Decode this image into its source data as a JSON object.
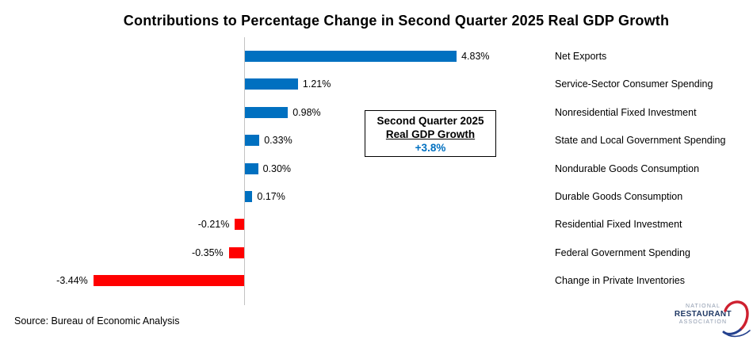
{
  "title": "Contributions to Percentage Change in Second Quarter 2025 Real GDP Growth",
  "chart_data": {
    "type": "bar",
    "orientation": "horizontal",
    "categories": [
      "Net Exports",
      "Service-Sector Consumer Spending",
      "Nonresidential Fixed Investment",
      "State and Local Government Spending",
      "Nondurable Goods Consumption",
      "Durable Goods Consumption",
      "Residential Fixed Investment",
      "Federal Government Spending",
      "Change in Private Inventories"
    ],
    "values": [
      4.83,
      1.21,
      0.98,
      0.33,
      0.3,
      0.17,
      -0.21,
      -0.35,
      -3.44
    ],
    "value_labels": [
      "4.83%",
      "1.21%",
      "0.98%",
      "0.33%",
      "0.30%",
      "0.17%",
      "-0.21%",
      "-0.35%",
      "-3.44%"
    ],
    "title": "Contributions to Percentage Change in Second Quarter 2025 Real GDP Growth",
    "xlabel": "",
    "ylabel": "",
    "xlim": [
      -3.6,
      5.2
    ],
    "grid": false,
    "legend": "none",
    "bar_color_positive": "#0070c0",
    "bar_color_negative": "#ff0000",
    "axis_line_color": "#c3c3c3"
  },
  "callout": {
    "line1": "Second Quarter 2025",
    "line2": "Real GDP Growth",
    "line3": "+3.8%",
    "value_color": "#0070c0"
  },
  "source": "Source: Bureau of Economic Analysis",
  "logo": {
    "line1": "NATIONAL",
    "line2": "RESTAURANT",
    "line3": "ASSOCIATION",
    "swoosh_red": "#ce202f",
    "swoosh_blue": "#24418e"
  }
}
